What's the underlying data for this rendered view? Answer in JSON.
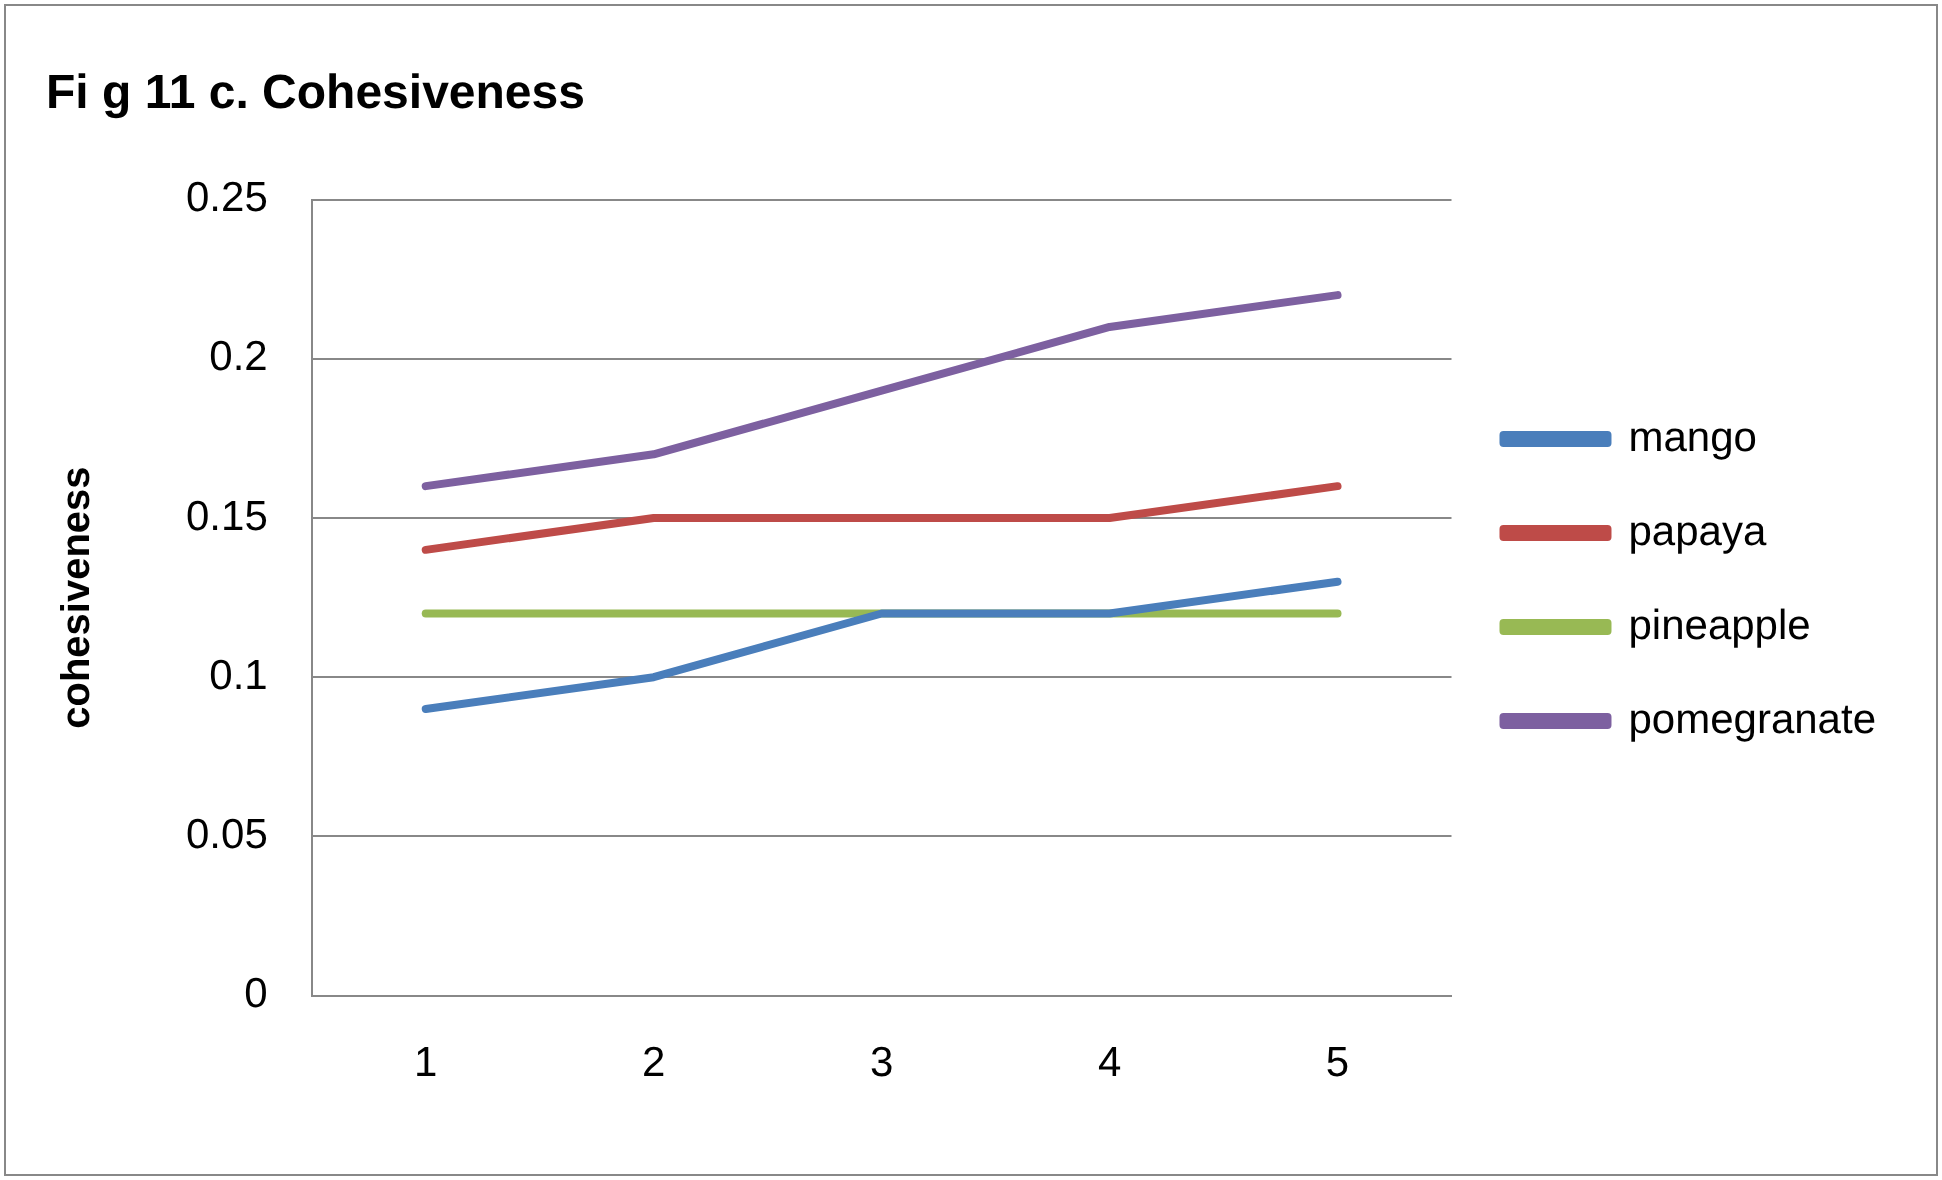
{
  "chart_data": {
    "type": "line",
    "title": "Fi g 11 c. Cohesiveness",
    "ylabel": "cohesiveness",
    "categories": [
      "1",
      "2",
      "3",
      "4",
      "5"
    ],
    "series": [
      {
        "name": "mango",
        "color": "#4a7ebb",
        "values": [
          0.09,
          0.1,
          0.12,
          0.12,
          0.13
        ]
      },
      {
        "name": "papaya",
        "color": "#be4b48",
        "values": [
          0.14,
          0.15,
          0.15,
          0.15,
          0.16
        ]
      },
      {
        "name": "pineapple",
        "color": "#98b954",
        "values": [
          0.12,
          0.12,
          0.12,
          0.12,
          0.12
        ]
      },
      {
        "name": "pomegranate",
        "color": "#7d60a0",
        "values": [
          0.16,
          0.17,
          0.19,
          0.21,
          0.22
        ]
      }
    ],
    "ylim": [
      0,
      0.25
    ],
    "yticks": [
      0,
      0.05,
      0.1,
      0.15,
      0.2,
      0.25
    ],
    "grid": "y",
    "legend": "right",
    "marker": "none",
    "line_style": "solid"
  }
}
